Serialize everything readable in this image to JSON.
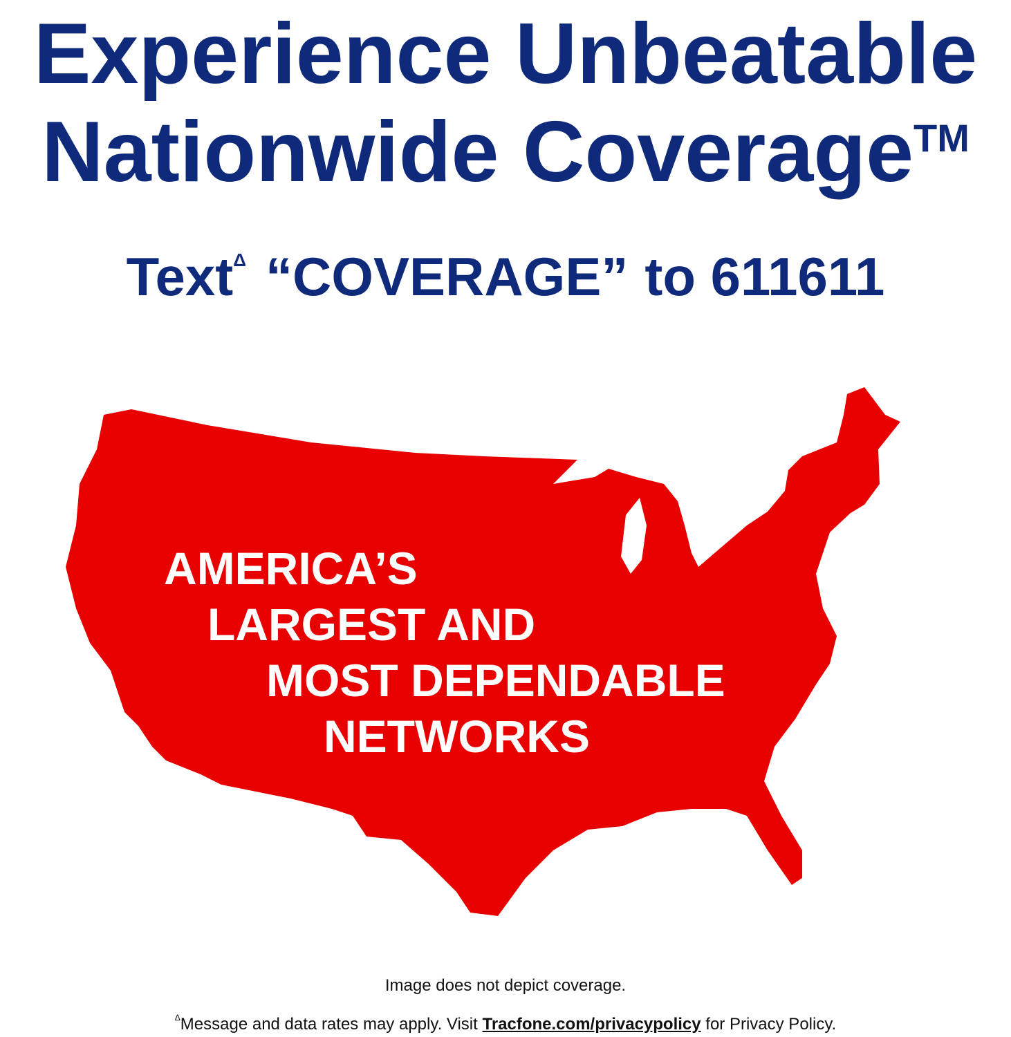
{
  "headline": {
    "line1": "Experience Unbeatable",
    "line2": "Nationwide Coverage",
    "trademark": "TM"
  },
  "cta": {
    "prefix": "Text",
    "marker": "Δ",
    "keyword": "“COVERAGE”",
    "suffix": "to 611611"
  },
  "map": {
    "icon": "usa-map-silhouette",
    "claim_lines": [
      "AMERICA’S",
      "LARGEST AND",
      "MOST DEPENDABLE",
      "NETWORKS"
    ]
  },
  "footer": {
    "disclaimer": "Image does not depict coverage.",
    "marker": "Δ",
    "rates_text": "Message and data rates may apply. Visit",
    "link_text": "Tracfone.com/privacypolicy",
    "suffix": "for Privacy Policy."
  },
  "colors": {
    "navy": "#0f2a7a",
    "red": "#e80000",
    "background": "#ffffff"
  }
}
